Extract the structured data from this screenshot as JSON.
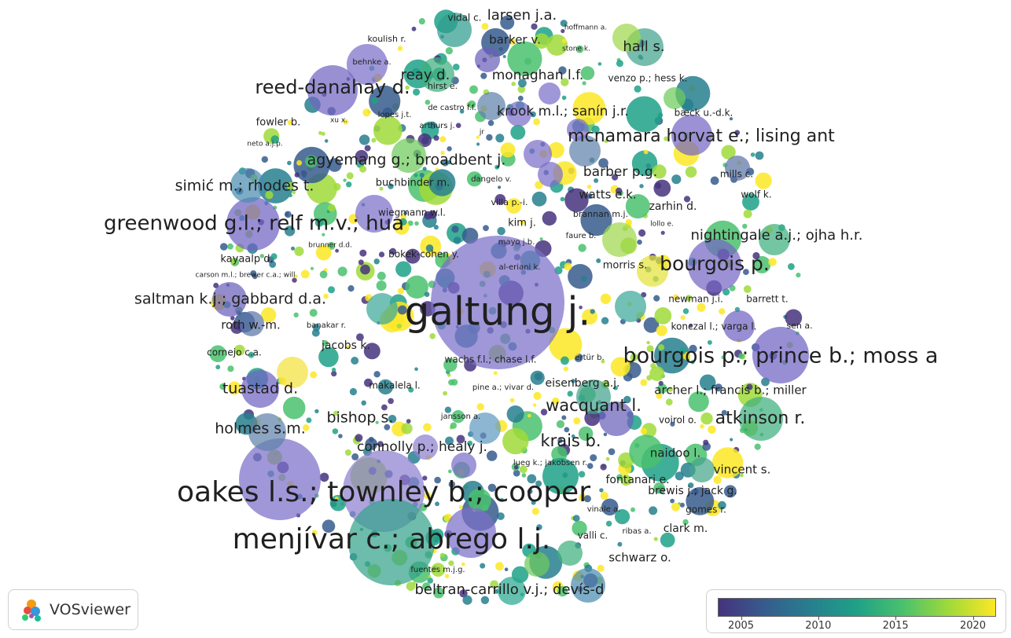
{
  "brand": {
    "name": "VOSviewer",
    "logo_icon": "vosviewer-logo-icon"
  },
  "legend": {
    "colors": [
      "#46327e",
      "#365c8d",
      "#277f8e",
      "#1fa187",
      "#4ac16d",
      "#a0da39",
      "#fde725"
    ],
    "ticks": [
      "2005",
      "2010",
      "2015",
      "2020"
    ],
    "tick_values": [
      2005,
      2010,
      2015,
      2020
    ],
    "range": [
      2003.5,
      2021.5
    ]
  },
  "labels": [
    {
      "text": "galtung j.",
      "fs": 50
    },
    {
      "text": "oakes l.s.; townley b.; cooper",
      "fs": 36
    },
    {
      "text": "menjívar c.; abrego l.j.",
      "fs": 36
    },
    {
      "text": "bourgois p.; prince b.; moss a",
      "fs": 27
    },
    {
      "text": "greenwood g.l.; relf m.v.; hua",
      "fs": 26
    },
    {
      "text": "reed-danahay d.",
      "fs": 24
    },
    {
      "text": "bourgois p.",
      "fs": 25
    },
    {
      "text": "mcnamara horvat e.; lising ant",
      "fs": 22
    },
    {
      "text": "atkinson r.",
      "fs": 22
    },
    {
      "text": "wacquant l.",
      "fs": 21
    },
    {
      "text": "krais b.",
      "fs": 21
    },
    {
      "text": "agyemang g.; broadbent j.",
      "fs": 19
    },
    {
      "text": "saltman k.j.; gabbard d.a.",
      "fs": 19
    },
    {
      "text": "holmes s.m.",
      "fs": 19
    },
    {
      "text": "tuastad d.",
      "fs": 19
    },
    {
      "text": "bishop s.",
      "fs": 19
    },
    {
      "text": "simić m.; rhodes t.",
      "fs": 19
    },
    {
      "text": "nightingale a.j.; ojha h.r.",
      "fs": 18
    },
    {
      "text": "beltran-carrillo v.j.; devís-d",
      "fs": 18
    },
    {
      "text": "reay d.",
      "fs": 18
    },
    {
      "text": "hall s.",
      "fs": 18
    },
    {
      "text": "larsen j.a.",
      "fs": 18
    },
    {
      "text": "connolly p.; healy j.",
      "fs": 17
    },
    {
      "text": "barber p.g.",
      "fs": 17
    },
    {
      "text": "krook m.l.; sanín j.r.",
      "fs": 17
    },
    {
      "text": "monaghan l.f.",
      "fs": 17
    },
    {
      "text": "barker v.",
      "fs": 15
    },
    {
      "text": "schwarz o.",
      "fs": 15
    },
    {
      "text": "archer l.; francis b.; miller",
      "fs": 15
    },
    {
      "text": "vincent s.",
      "fs": 15
    },
    {
      "text": "brewis j.; jack g.",
      "fs": 14
    },
    {
      "text": "naidoo l.",
      "fs": 15
    },
    {
      "text": "roth w.-m.",
      "fs": 15
    },
    {
      "text": "watts e.k.",
      "fs": 15
    },
    {
      "text": "zarhin d.",
      "fs": 14
    },
    {
      "text": "eisenberg a.j.",
      "fs": 14
    },
    {
      "text": "fontanari e.",
      "fs": 14
    },
    {
      "text": "jacobs k.",
      "fs": 14
    },
    {
      "text": "clark m.",
      "fs": 14
    },
    {
      "text": "buchbinder m.",
      "fs": 13
    },
    {
      "text": "fowler b.",
      "fs": 13
    },
    {
      "text": "morris s.",
      "fs": 13
    },
    {
      "text": "kayaalp d.",
      "fs": 13
    },
    {
      "text": "kim j.",
      "fs": 13
    },
    {
      "text": "cornejo c.a.",
      "fs": 12
    },
    {
      "text": "wiegmann w.l.",
      "fs": 12
    },
    {
      "text": "makalela l.",
      "fs": 12
    },
    {
      "text": "bokek-cohen y.",
      "fs": 12
    },
    {
      "text": "wachs f.l.; chase l.f.",
      "fs": 12
    },
    {
      "text": "newman j.i.",
      "fs": 12
    },
    {
      "text": "konczal l.; varga l.",
      "fs": 12
    },
    {
      "text": "barrett t.",
      "fs": 12
    },
    {
      "text": "vidal c.",
      "fs": 12
    },
    {
      "text": "voirol o.",
      "fs": 12
    },
    {
      "text": "gomes r.",
      "fs": 12
    },
    {
      "text": "venzo p.; hess k.",
      "fs": 12
    },
    {
      "text": "mills c.",
      "fs": 12
    },
    {
      "text": "wolf k.",
      "fs": 12
    },
    {
      "text": "bæck u.-d.k.",
      "fs": 12
    },
    {
      "text": "villa p.-i.",
      "fs": 11
    },
    {
      "text": "brannan m.j.",
      "fs": 11
    },
    {
      "text": "sen a.",
      "fs": 11
    },
    {
      "text": "valli c.",
      "fs": 12
    },
    {
      "text": "koulish r.",
      "fs": 11
    },
    {
      "text": "hirst e.",
      "fs": 11
    },
    {
      "text": "de castro f.f.",
      "fs": 10
    },
    {
      "text": "behnke a.",
      "fs": 10
    },
    {
      "text": "arthurs j.",
      "fs": 10
    },
    {
      "text": "lopes j.t.",
      "fs": 10
    },
    {
      "text": "dangelo v.",
      "fs": 10
    },
    {
      "text": "mayo j.b.",
      "fs": 10
    },
    {
      "text": "al-eriani k.",
      "fs": 10
    },
    {
      "text": "faure b.",
      "fs": 10
    },
    {
      "text": "lollo e.",
      "fs": 9
    },
    {
      "text": "ertür b.",
      "fs": 10
    },
    {
      "text": "pine a.; vivar d.",
      "fs": 10
    },
    {
      "text": "jansson a.",
      "fs": 10
    },
    {
      "text": "lueg k.; jakobsen r.",
      "fs": 10
    },
    {
      "text": "vinale a.",
      "fs": 10
    },
    {
      "text": "ribas a.",
      "fs": 10
    },
    {
      "text": "fuentes m.j.g.",
      "fs": 10
    },
    {
      "text": "banakar r.",
      "fs": 10
    },
    {
      "text": "carson m.l.; brewer c.a.; will",
      "fs": 9
    },
    {
      "text": "brunner d.d.",
      "fs": 9
    },
    {
      "text": "neto a.j.p.",
      "fs": 9
    },
    {
      "text": "xu x.",
      "fs": 9
    },
    {
      "text": "jr",
      "fs": 9
    },
    {
      "text": "stone k.",
      "fs": 9
    },
    {
      "text": "hoffmann a.",
      "fs": 9
    }
  ]
}
